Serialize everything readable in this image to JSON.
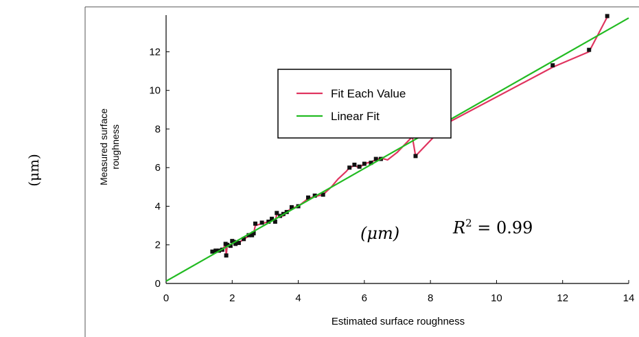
{
  "chart_data": {
    "type": "line",
    "xlabel": "Estimated surface roughness",
    "ylabel_line1": "Measured surface",
    "ylabel_line2": "roughness",
    "side_unit": "(μm)",
    "unit_annotation": "(μm)",
    "r2_annotation": {
      "symbol": "R",
      "exponent": "2",
      "rest": " = 0.99"
    },
    "xlim": [
      0,
      14
    ],
    "ylim": [
      0,
      14
    ],
    "xticks": [
      0,
      2,
      4,
      6,
      8,
      10,
      12,
      14
    ],
    "yticks": [
      0,
      2,
      4,
      6,
      8,
      10,
      12
    ],
    "legend_position": "upper-center",
    "series": [
      {
        "name": "Fit Each Value",
        "color": "#e0345f",
        "x": [
          1.4,
          1.5,
          1.6,
          1.7,
          1.8,
          1.82,
          1.85,
          1.95,
          2.0,
          2.05,
          2.1,
          2.2,
          2.35,
          2.5,
          2.6,
          2.65,
          2.7,
          2.9,
          3.1,
          3.2,
          3.3,
          3.35,
          3.45,
          3.55,
          3.65,
          3.8,
          4.0,
          4.3,
          4.5,
          4.75,
          5.0,
          5.2,
          5.45,
          5.55,
          5.7,
          5.85,
          6.0,
          6.2,
          6.35,
          6.5,
          6.7,
          7.0,
          7.45,
          7.55,
          8.5,
          11.7,
          12.8,
          13.35
        ],
        "y": [
          1.65,
          1.7,
          1.7,
          1.75,
          2.0,
          1.45,
          2.0,
          1.95,
          2.1,
          2.15,
          2.05,
          2.1,
          2.3,
          2.45,
          2.5,
          2.6,
          3.0,
          3.1,
          3.2,
          3.3,
          3.2,
          3.6,
          3.5,
          3.5,
          3.7,
          3.9,
          4.0,
          4.4,
          4.5,
          4.6,
          5.0,
          5.4,
          5.8,
          6.0,
          6.1,
          6.0,
          6.2,
          6.3,
          6.4,
          6.5,
          6.4,
          6.8,
          7.6,
          6.6,
          8.3,
          11.2,
          12.0,
          13.8
        ]
      },
      {
        "name": "Linear Fit",
        "color": "#22bb22",
        "x": [
          0,
          14
        ],
        "y": [
          0.12,
          13.75
        ]
      }
    ],
    "markers": {
      "color": "#111111",
      "x": [
        1.4,
        1.5,
        1.6,
        1.7,
        1.8,
        1.82,
        1.85,
        1.95,
        2.0,
        2.05,
        2.1,
        2.2,
        2.35,
        2.5,
        2.6,
        2.65,
        2.7,
        2.9,
        3.1,
        3.2,
        3.3,
        3.35,
        3.45,
        3.55,
        3.65,
        3.8,
        4.0,
        4.3,
        4.5,
        4.75,
        5.55,
        5.7,
        5.85,
        6.0,
        6.2,
        6.35,
        6.5,
        7.45,
        7.55,
        11.7,
        12.8,
        13.35
      ],
      "y": [
        1.65,
        1.7,
        1.7,
        1.75,
        2.05,
        1.45,
        2.0,
        1.95,
        2.2,
        2.15,
        2.05,
        2.1,
        2.3,
        2.5,
        2.5,
        2.6,
        3.1,
        3.15,
        3.2,
        3.35,
        3.2,
        3.65,
        3.5,
        3.6,
        3.7,
        3.95,
        4.0,
        4.45,
        4.55,
        4.6,
        6.0,
        6.15,
        6.05,
        6.2,
        6.25,
        6.45,
        6.45,
        7.65,
        6.6,
        11.3,
        12.1,
        13.85
      ]
    }
  }
}
